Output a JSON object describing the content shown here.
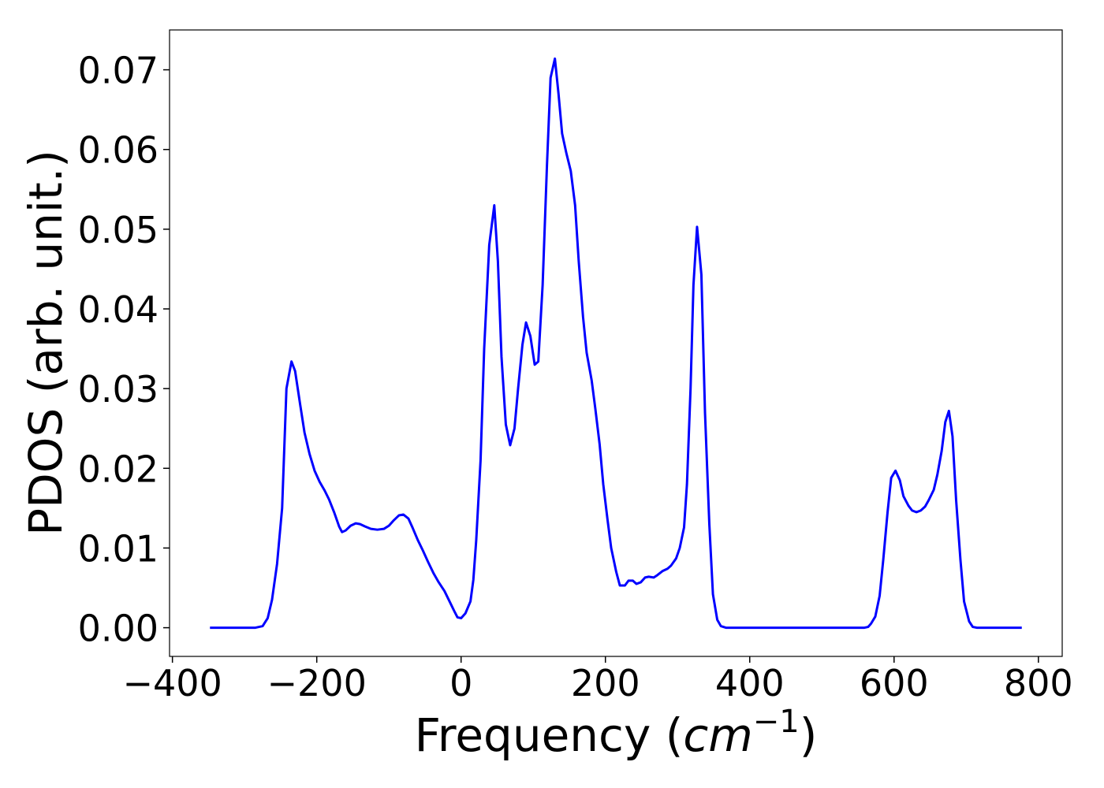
{
  "chart_data": {
    "type": "line",
    "xlabel": [
      "Frequency (",
      "cm",
      "−1",
      ")"
    ],
    "ylabel": "PDOS (arb. unit.)",
    "xlim": [
      -404,
      833
    ],
    "ylim": [
      -0.0036,
      0.075
    ],
    "xticks": [
      {
        "value": -400,
        "label": "−400"
      },
      {
        "value": -200,
        "label": "−200"
      },
      0,
      200,
      400,
      600,
      800
    ],
    "yticks": [
      {
        "value": 0,
        "label": "0.00"
      },
      0.01,
      0.02,
      0.03,
      0.04,
      0.05,
      0.06,
      0.07
    ],
    "x": [
      -348,
      -285,
      -275,
      -268,
      -262,
      -255,
      -248,
      -242,
      -235,
      -230,
      -223,
      -217,
      -210,
      -203,
      -196,
      -189,
      -183,
      -176,
      -169,
      -165,
      -160,
      -153,
      -146,
      -140,
      -133,
      -125,
      -116,
      -107,
      -100,
      -93,
      -86,
      -80,
      -73,
      -67,
      -60,
      -53,
      -46,
      -38,
      -31,
      -23,
      -16,
      -9,
      -5,
      0,
      6,
      13,
      17,
      21,
      27,
      32,
      39,
      46,
      51,
      56,
      62,
      68,
      74,
      79,
      85,
      90,
      96,
      102,
      107,
      113,
      119,
      124,
      130,
      135,
      140,
      146,
      152,
      158,
      163,
      169,
      174,
      181,
      186,
      192,
      197,
      203,
      208,
      215,
      220,
      227,
      232,
      238,
      243,
      249,
      255,
      260,
      267,
      272,
      279,
      286,
      291,
      298,
      303,
      309,
      313,
      318,
      322,
      327,
      333,
      338,
      344,
      349,
      355,
      360,
      367,
      559,
      564,
      568,
      574,
      580,
      585,
      591,
      596,
      602,
      608,
      613,
      620,
      625,
      631,
      637,
      643,
      648,
      655,
      660,
      666,
      671,
      676,
      681,
      686,
      692,
      697,
      704,
      709,
      715,
      777
    ],
    "series": [
      {
        "name": "PDOS",
        "color": "#0000ff",
        "values": [
          0,
          0,
          0.0002,
          0.0012,
          0.0035,
          0.008,
          0.015,
          0.03,
          0.0334,
          0.0322,
          0.028,
          0.0245,
          0.0218,
          0.0197,
          0.0183,
          0.0172,
          0.0161,
          0.0145,
          0.0127,
          0.012,
          0.0122,
          0.0128,
          0.0131,
          0.013,
          0.0127,
          0.0124,
          0.0123,
          0.0124,
          0.0128,
          0.0135,
          0.0141,
          0.0142,
          0.0137,
          0.0125,
          0.011,
          0.0097,
          0.0083,
          0.0068,
          0.0057,
          0.0046,
          0.0033,
          0.002,
          0.0013,
          0.0012,
          0.0018,
          0.0033,
          0.006,
          0.011,
          0.021,
          0.035,
          0.048,
          0.053,
          0.046,
          0.034,
          0.0255,
          0.0229,
          0.025,
          0.03,
          0.0355,
          0.0383,
          0.0366,
          0.033,
          0.0334,
          0.043,
          0.058,
          0.069,
          0.0714,
          0.067,
          0.062,
          0.0595,
          0.0573,
          0.053,
          0.046,
          0.039,
          0.0345,
          0.031,
          0.0275,
          0.023,
          0.018,
          0.0135,
          0.01,
          0.007,
          0.0053,
          0.0053,
          0.0059,
          0.0059,
          0.0055,
          0.0057,
          0.0063,
          0.0064,
          0.0063,
          0.0066,
          0.0071,
          0.0074,
          0.0078,
          0.0087,
          0.01,
          0.0126,
          0.018,
          0.03,
          0.043,
          0.0503,
          0.0443,
          0.027,
          0.013,
          0.0042,
          0.001,
          0.0002,
          0,
          0,
          0.0001,
          0.0005,
          0.0014,
          0.004,
          0.0085,
          0.0145,
          0.0188,
          0.0197,
          0.0185,
          0.0165,
          0.0153,
          0.0147,
          0.0145,
          0.0147,
          0.0152,
          0.016,
          0.0173,
          0.0192,
          0.0222,
          0.0258,
          0.0272,
          0.024,
          0.016,
          0.0085,
          0.0033,
          0.0008,
          0.0001,
          0,
          0
        ]
      }
    ]
  }
}
